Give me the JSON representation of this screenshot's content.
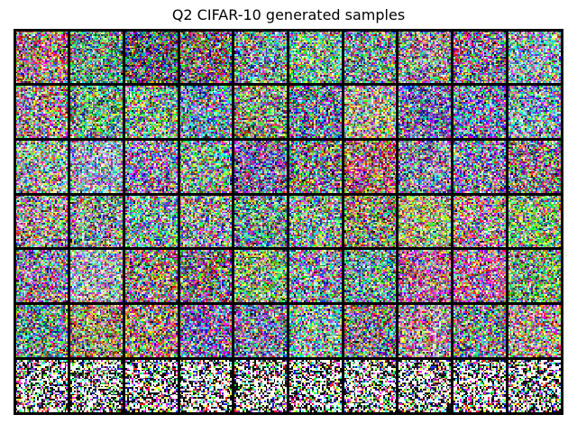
{
  "figure": {
    "title": "Q2 CIFAR-10 generated samples"
  },
  "sample_grid": {
    "rows": 7,
    "columns": 10,
    "sample_resolution": 32,
    "border_color": "#000000",
    "content": "noisy generated RGB samples; bottom row higher contrast with white, black and saturated color patches"
  }
}
